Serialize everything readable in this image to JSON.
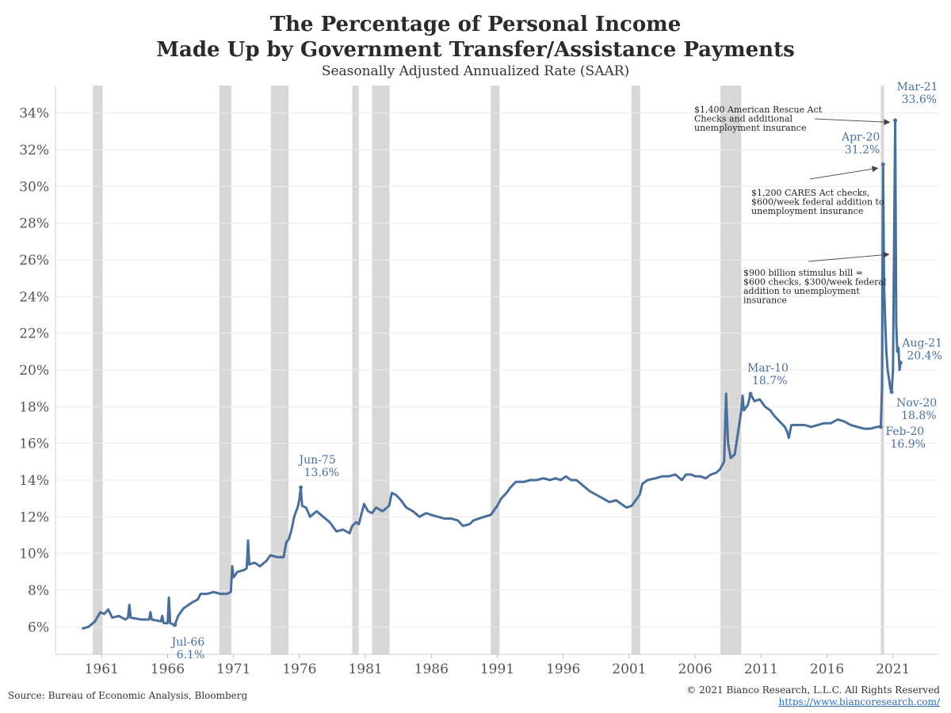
{
  "header": {
    "title_line1": "The Percentage of Personal Income",
    "title_line2": "Made Up by Government Transfer/Assistance Payments",
    "subtitle": "Seasonally Adjusted Annualized Rate (SAAR)"
  },
  "footer": {
    "source": "Source: Bureau of Economic Analysis, Bloomberg",
    "copyright": "© 2021 Bianco Research, L.L.C. All Rights Reserved",
    "url": "https://www.biancoresearch.com/"
  },
  "chart_data": {
    "type": "line",
    "title": "The Percentage of Personal Income Made Up by Government Transfer/Assistance Payments",
    "subtitle": "Seasonally Adjusted Annualized Rate (SAAR)",
    "xlabel": "",
    "ylabel": "",
    "xlim": [
      1957.5,
      2024.5
    ],
    "ylim": [
      4.5,
      35.5
    ],
    "grid": true,
    "line_color": "#4a6f9a",
    "recession_color": "#d7d7d7",
    "y_ticks": [
      6,
      8,
      10,
      12,
      14,
      16,
      18,
      20,
      22,
      24,
      26,
      28,
      30,
      32,
      34
    ],
    "y_tick_labels": [
      "6%",
      "8%",
      "10%",
      "12%",
      "14%",
      "16%",
      "18%",
      "20%",
      "22%",
      "24%",
      "26%",
      "28%",
      "30%",
      "32%",
      "34%"
    ],
    "x_ticks": [
      1961,
      1966,
      1971,
      1976,
      1981,
      1986,
      1991,
      1996,
      2001,
      2006,
      2011,
      2016,
      2021
    ],
    "x_tick_labels": [
      "1961",
      "1966",
      "1971",
      "1976",
      "1981",
      "1986",
      "1991",
      "1996",
      "2001",
      "2006",
      "2011",
      "2016",
      "2021"
    ],
    "recessions": [
      [
        1960.33,
        1961.08
      ],
      [
        1969.92,
        1970.83
      ],
      [
        1973.83,
        1975.17
      ],
      [
        1980.0,
        1980.5
      ],
      [
        1981.5,
        1982.83
      ],
      [
        1990.5,
        1991.17
      ],
      [
        2001.17,
        2001.83
      ],
      [
        2007.92,
        2009.5
      ],
      [
        2020.08,
        2020.33
      ]
    ],
    "series": [
      {
        "values": [
          [
            1959.5,
            5.9
          ],
          [
            1960.0,
            6.0
          ],
          [
            1960.5,
            6.3
          ],
          [
            1960.9,
            6.8
          ],
          [
            1961.2,
            6.7
          ],
          [
            1961.5,
            6.95
          ],
          [
            1961.8,
            6.5
          ],
          [
            1962.3,
            6.6
          ],
          [
            1962.8,
            6.4
          ],
          [
            1963.0,
            6.5
          ],
          [
            1963.1,
            7.2
          ],
          [
            1963.2,
            6.5
          ],
          [
            1964.0,
            6.4
          ],
          [
            1964.6,
            6.4
          ],
          [
            1964.7,
            6.8
          ],
          [
            1964.8,
            6.4
          ],
          [
            1965.5,
            6.3
          ],
          [
            1965.6,
            6.6
          ],
          [
            1965.7,
            6.2
          ],
          [
            1966.0,
            6.2
          ],
          [
            1966.1,
            7.6
          ],
          [
            1966.2,
            6.2
          ],
          [
            1966.55,
            6.1
          ],
          [
            1966.8,
            6.6
          ],
          [
            1967.2,
            7.0
          ],
          [
            1967.8,
            7.3
          ],
          [
            1968.3,
            7.5
          ],
          [
            1968.5,
            7.8
          ],
          [
            1969.0,
            7.8
          ],
          [
            1969.5,
            7.9
          ],
          [
            1970.0,
            7.8
          ],
          [
            1970.5,
            7.8
          ],
          [
            1970.8,
            7.9
          ],
          [
            1970.9,
            9.3
          ],
          [
            1971.0,
            8.7
          ],
          [
            1971.3,
            9.0
          ],
          [
            1971.8,
            9.1
          ],
          [
            1972.0,
            9.2
          ],
          [
            1972.1,
            10.7
          ],
          [
            1972.2,
            9.4
          ],
          [
            1972.6,
            9.5
          ],
          [
            1973.0,
            9.3
          ],
          [
            1973.5,
            9.6
          ],
          [
            1973.8,
            9.9
          ],
          [
            1974.3,
            9.8
          ],
          [
            1974.8,
            9.8
          ],
          [
            1975.0,
            10.6
          ],
          [
            1975.2,
            10.8
          ],
          [
            1975.4,
            11.3
          ],
          [
            1975.6,
            12.0
          ],
          [
            1975.9,
            12.6
          ],
          [
            1976.0,
            13.0
          ],
          [
            1976.1,
            13.6
          ],
          [
            1976.2,
            12.6
          ],
          [
            1976.5,
            12.5
          ],
          [
            1976.8,
            12.0
          ],
          [
            1977.3,
            12.3
          ],
          [
            1977.8,
            12.0
          ],
          [
            1978.3,
            11.7
          ],
          [
            1978.8,
            11.2
          ],
          [
            1979.3,
            11.3
          ],
          [
            1979.8,
            11.1
          ],
          [
            1980.0,
            11.5
          ],
          [
            1980.3,
            11.7
          ],
          [
            1980.5,
            11.6
          ],
          [
            1980.9,
            12.7
          ],
          [
            1981.2,
            12.3
          ],
          [
            1981.5,
            12.2
          ],
          [
            1981.8,
            12.5
          ],
          [
            1982.3,
            12.3
          ],
          [
            1982.8,
            12.6
          ],
          [
            1983.0,
            13.3
          ],
          [
            1983.3,
            13.2
          ],
          [
            1983.7,
            12.9
          ],
          [
            1984.1,
            12.5
          ],
          [
            1984.6,
            12.3
          ],
          [
            1985.1,
            12.0
          ],
          [
            1985.6,
            12.2
          ],
          [
            1986.0,
            12.1
          ],
          [
            1986.5,
            12.0
          ],
          [
            1987.0,
            11.9
          ],
          [
            1987.5,
            11.9
          ],
          [
            1988.0,
            11.8
          ],
          [
            1988.4,
            11.5
          ],
          [
            1988.9,
            11.6
          ],
          [
            1989.2,
            11.8
          ],
          [
            1989.6,
            11.9
          ],
          [
            1990.0,
            12.0
          ],
          [
            1990.5,
            12.1
          ],
          [
            1991.0,
            12.6
          ],
          [
            1991.3,
            13.0
          ],
          [
            1991.7,
            13.3
          ],
          [
            1992.0,
            13.6
          ],
          [
            1992.4,
            13.9
          ],
          [
            1993.0,
            13.9
          ],
          [
            1993.5,
            14.0
          ],
          [
            1994.0,
            14.0
          ],
          [
            1994.5,
            14.1
          ],
          [
            1995.0,
            14.0
          ],
          [
            1995.4,
            14.1
          ],
          [
            1995.8,
            14.0
          ],
          [
            1996.2,
            14.2
          ],
          [
            1996.6,
            14.0
          ],
          [
            1997.0,
            14.0
          ],
          [
            1997.5,
            13.7
          ],
          [
            1998.0,
            13.4
          ],
          [
            1998.5,
            13.2
          ],
          [
            1999.0,
            13.0
          ],
          [
            1999.5,
            12.8
          ],
          [
            2000.0,
            12.9
          ],
          [
            2000.4,
            12.7
          ],
          [
            2000.8,
            12.5
          ],
          [
            2001.2,
            12.6
          ],
          [
            2001.5,
            12.9
          ],
          [
            2001.8,
            13.2
          ],
          [
            2002.0,
            13.8
          ],
          [
            2002.4,
            14.0
          ],
          [
            2003.0,
            14.1
          ],
          [
            2003.5,
            14.2
          ],
          [
            2004.0,
            14.2
          ],
          [
            2004.5,
            14.3
          ],
          [
            2005.0,
            14.0
          ],
          [
            2005.3,
            14.3
          ],
          [
            2005.7,
            14.3
          ],
          [
            2006.0,
            14.2
          ],
          [
            2006.4,
            14.2
          ],
          [
            2006.8,
            14.1
          ],
          [
            2007.2,
            14.3
          ],
          [
            2007.6,
            14.4
          ],
          [
            2007.9,
            14.6
          ],
          [
            2008.2,
            15.0
          ],
          [
            2008.35,
            18.7
          ],
          [
            2008.5,
            16.0
          ],
          [
            2008.7,
            15.2
          ],
          [
            2009.0,
            15.4
          ],
          [
            2009.3,
            16.8
          ],
          [
            2009.5,
            17.8
          ],
          [
            2009.6,
            18.6
          ],
          [
            2009.7,
            17.8
          ],
          [
            2010.0,
            18.1
          ],
          [
            2010.2,
            18.7
          ],
          [
            2010.5,
            18.3
          ],
          [
            2010.9,
            18.4
          ],
          [
            2011.3,
            18.0
          ],
          [
            2011.7,
            17.8
          ],
          [
            2012.0,
            17.5
          ],
          [
            2012.4,
            17.2
          ],
          [
            2012.8,
            16.9
          ],
          [
            2013.0,
            16.6
          ],
          [
            2013.1,
            16.3
          ],
          [
            2013.3,
            17.0
          ],
          [
            2013.8,
            17.0
          ],
          [
            2014.3,
            17.0
          ],
          [
            2014.8,
            16.9
          ],
          [
            2015.3,
            17.0
          ],
          [
            2015.8,
            17.1
          ],
          [
            2016.3,
            17.1
          ],
          [
            2016.8,
            17.3
          ],
          [
            2017.3,
            17.2
          ],
          [
            2017.8,
            17.0
          ],
          [
            2018.3,
            16.9
          ],
          [
            2018.8,
            16.8
          ],
          [
            2019.3,
            16.8
          ],
          [
            2019.8,
            16.9
          ],
          [
            2020.0,
            16.9
          ],
          [
            2020.08,
            16.9
          ],
          [
            2020.17,
            19.0
          ],
          [
            2020.25,
            31.2
          ],
          [
            2020.33,
            24.5
          ],
          [
            2020.42,
            22.5
          ],
          [
            2020.5,
            21.0
          ],
          [
            2020.6,
            20.0
          ],
          [
            2020.7,
            19.5
          ],
          [
            2020.8,
            19.0
          ],
          [
            2020.9,
            18.8
          ],
          [
            2021.0,
            20.0
          ],
          [
            2021.08,
            26.5
          ],
          [
            2021.17,
            33.6
          ],
          [
            2021.25,
            22.5
          ],
          [
            2021.33,
            21.0
          ],
          [
            2021.42,
            21.2
          ],
          [
            2021.5,
            20.0
          ],
          [
            2021.58,
            20.4
          ]
        ]
      }
    ],
    "annotations": [
      {
        "label": "Jul-66",
        "value": "6.1%",
        "x": 1966.55,
        "y": 6.1
      },
      {
        "label": "Jun-75",
        "value": "13.6%",
        "x": 1976.1,
        "y": 13.6
      },
      {
        "label": "Mar-10",
        "value": "18.7%",
        "x": 2010.2,
        "y": 18.7
      },
      {
        "label": "Feb-20",
        "value": "16.9%",
        "x": 2020.08,
        "y": 16.9
      },
      {
        "label": "Apr-20",
        "value": "31.2%",
        "x": 2020.25,
        "y": 31.2
      },
      {
        "label": "Nov-20",
        "value": "18.8%",
        "x": 2020.9,
        "y": 18.8
      },
      {
        "label": "Mar-21",
        "value": "33.6%",
        "x": 2021.17,
        "y": 33.6
      },
      {
        "label": "Aug-21",
        "value": "20.4%",
        "x": 2021.58,
        "y": 20.4
      }
    ],
    "notes": [
      {
        "lines": [
          "$1,400 American Rescue Act",
          "Checks and additional",
          "unemployment insurance"
        ],
        "target": [
          2021.1,
          33.5
        ]
      },
      {
        "lines": [
          "$1,200 CARES Act checks,",
          "$600/week federal addition to",
          "unemployment insurance"
        ],
        "target": [
          2020.2,
          31.0
        ]
      },
      {
        "lines": [
          "$900 billion stimulus bill =",
          "$600 checks, $300/week federal",
          "addition to unemployment",
          "insurance"
        ],
        "target": [
          2021.05,
          26.3
        ]
      }
    ]
  }
}
